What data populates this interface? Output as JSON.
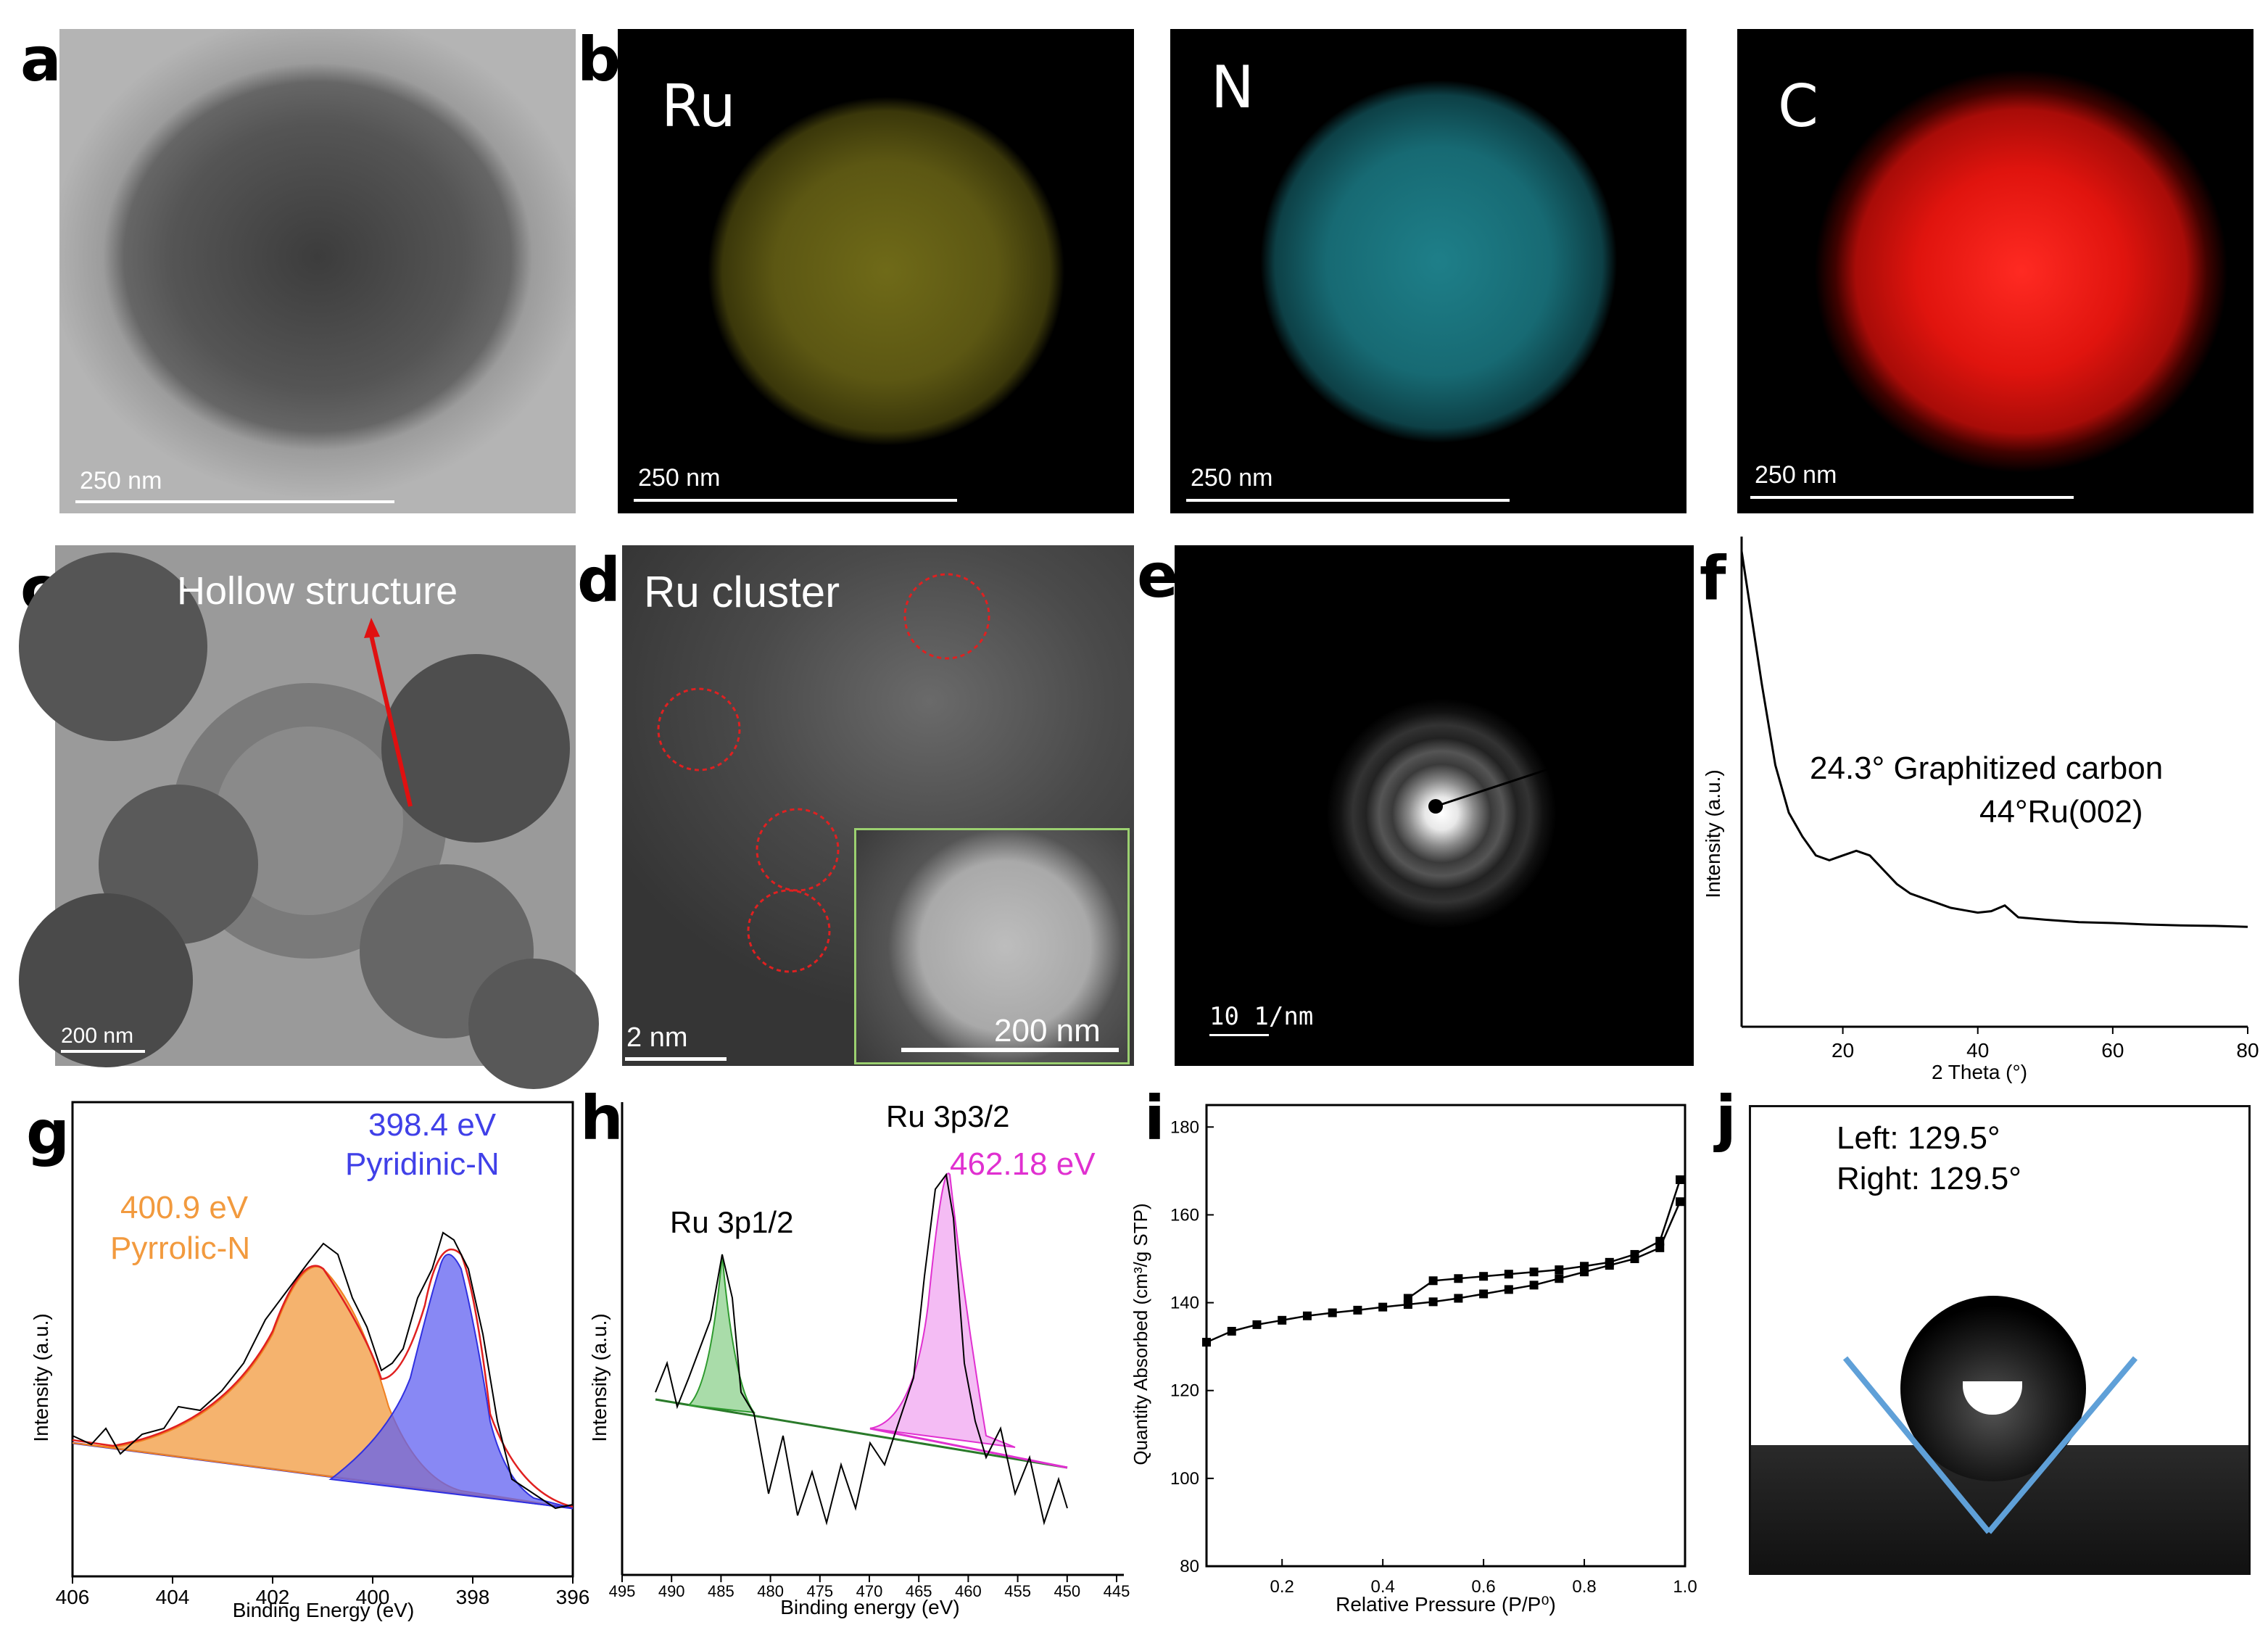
{
  "panel_labels": {
    "a": "a",
    "b": "b",
    "c": "c",
    "d": "d",
    "e": "e",
    "f": "f",
    "g": "g",
    "h": "h",
    "i": "i",
    "j": "j"
  },
  "colors": {
    "ru_map": "#c9c22a",
    "n_map": "#2ab7c6",
    "c_map": "#e0140e",
    "pyrrolic": "#f29a3e",
    "pyridinic": "#4040e8",
    "ru_1_2": "#2e9a2e",
    "ru_3_2": "#e030d0"
  },
  "panel_a": {
    "scale": "250 nm"
  },
  "panel_b": {
    "maps": [
      {
        "element": "Ru",
        "scale": "250 nm"
      },
      {
        "element": "N",
        "scale": "250 nm"
      },
      {
        "element": "C",
        "scale": "250 nm"
      }
    ]
  },
  "panel_c": {
    "annotation": "Hollow structure",
    "scale": "200 nm"
  },
  "panel_d": {
    "annotation": "Ru cluster",
    "scale": "2 nm",
    "inset_scale": "200 nm"
  },
  "panel_e": {
    "scale": "10 1/nm"
  },
  "panel_f": {
    "ylabel": "Intensity (a.u.)",
    "xlabel": "2 Theta (°)",
    "xticks": [
      "20",
      "40",
      "60",
      "80"
    ],
    "annotations": [
      "24.3° Graphitized carbon",
      "44°Ru(002)"
    ]
  },
  "panel_g": {
    "ylabel": "Intensity (a.u.)",
    "xlabel": "Binding Energy (eV)",
    "xticks": [
      "406",
      "404",
      "402",
      "400",
      "398",
      "396"
    ],
    "peak1_value": "400.9 eV",
    "peak1_name": "Pyrrolic-N",
    "peak2_value": "398.4 eV",
    "peak2_name": "Pyridinic-N"
  },
  "panel_h": {
    "ylabel": "Intensity (a.u.)",
    "xlabel": "Binding energy (eV)",
    "xticks": [
      "495",
      "490",
      "485",
      "480",
      "475",
      "470",
      "465",
      "460",
      "455",
      "450",
      "445"
    ],
    "peak1": "Ru 3p1/2",
    "peak2": "Ru 3p3/2",
    "peak2_value": "462.18 eV"
  },
  "panel_i": {
    "ylabel": "Quantity Absorbed (cm³/g STP)",
    "xlabel": "Relative Pressure (P/P⁰)",
    "xticks": [
      "0.2",
      "0.4",
      "0.6",
      "0.8",
      "1.0"
    ],
    "yticks": [
      "80",
      "100",
      "120",
      "140",
      "160",
      "180"
    ]
  },
  "panel_j": {
    "left": "Left: 129.5°",
    "right": "Right: 129.5°"
  },
  "chart_data": [
    {
      "type": "line",
      "panel": "f",
      "xlabel": "2 Theta (°)",
      "ylabel": "Intensity (a.u.)",
      "xlim": [
        5,
        80
      ],
      "x": [
        5,
        8,
        10,
        12,
        14,
        16,
        18,
        20,
        22,
        24,
        26,
        28,
        30,
        32,
        34,
        36,
        38,
        40,
        42,
        44,
        46,
        50,
        55,
        60,
        65,
        70,
        75,
        80
      ],
      "y": [
        100,
        72,
        55,
        45,
        40,
        36,
        35,
        36,
        37,
        36,
        33,
        30,
        28,
        27,
        26,
        25,
        24.5,
        24,
        24.3,
        25.5,
        23,
        22.5,
        22,
        21.8,
        21.5,
        21.3,
        21.2,
        21
      ]
    },
    {
      "type": "line",
      "panel": "i",
      "xlabel": "Relative Pressure (P/P⁰)",
      "ylabel": "Quantity Absorbed (cm³/g STP)",
      "xlim": [
        0.05,
        1.0
      ],
      "ylim": [
        80,
        185
      ],
      "series": [
        {
          "x": [
            0.05,
            0.1,
            0.15,
            0.2,
            0.25,
            0.3,
            0.35,
            0.4,
            0.45,
            0.5,
            0.55,
            0.6,
            0.65,
            0.7,
            0.75,
            0.8,
            0.85,
            0.9,
            0.95,
            0.99
          ],
          "y": [
            131,
            133.5,
            135,
            136,
            137,
            137.7,
            138.3,
            139,
            139.6,
            140.2,
            141,
            142,
            143,
            144,
            145.5,
            147,
            148.5,
            150,
            152.5,
            163
          ]
        },
        {
          "x": [
            0.45,
            0.5,
            0.55,
            0.6,
            0.65,
            0.7,
            0.75,
            0.8,
            0.85,
            0.9,
            0.95,
            0.99
          ],
          "y": [
            141,
            145,
            145.5,
            146,
            146.5,
            147,
            147.5,
            148.3,
            149.2,
            151,
            154,
            168
          ]
        }
      ]
    }
  ]
}
